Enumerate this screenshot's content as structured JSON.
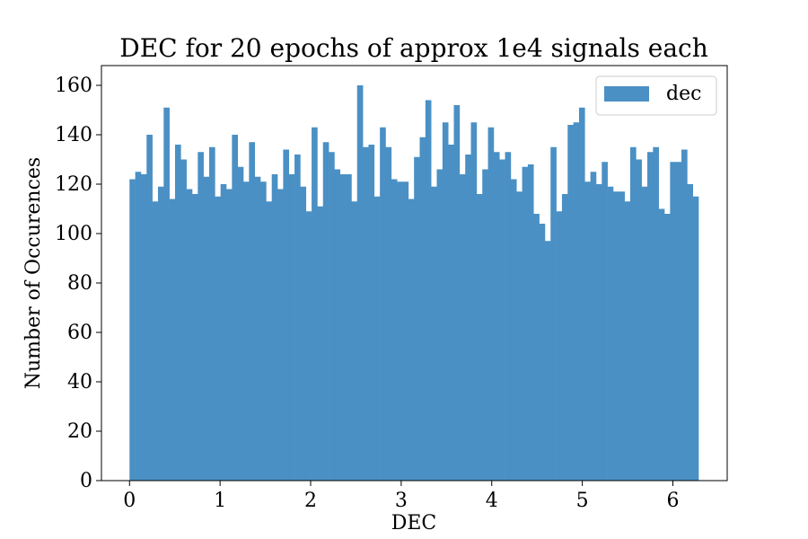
{
  "chart_data": {
    "type": "bar",
    "title": "DEC for 20 epochs of approx 1e4 signals each",
    "xlabel": "DEC",
    "ylabel": "Number of Occurences",
    "xlim": [
      -0.31,
      6.6
    ],
    "ylim": [
      0,
      168
    ],
    "xticks": [
      0,
      1,
      2,
      3,
      4,
      5,
      6
    ],
    "xtick_labels": [
      "0",
      "1",
      "2",
      "3",
      "4",
      "5",
      "6"
    ],
    "yticks": [
      0,
      20,
      40,
      60,
      80,
      100,
      120,
      140,
      160
    ],
    "ytick_labels": [
      "0",
      "20",
      "40",
      "60",
      "80",
      "100",
      "120",
      "140",
      "160"
    ],
    "bin_start": 0,
    "bin_end": 6.2832,
    "legend": {
      "position": "top-right",
      "entries": [
        "dec"
      ]
    },
    "series": [
      {
        "name": "dec",
        "color": "#4a90c4",
        "values": [
          122,
          125,
          124,
          140,
          113,
          119,
          151,
          114,
          136,
          130,
          118,
          116,
          133,
          123,
          135,
          115,
          120,
          118,
          140,
          127,
          121,
          137,
          123,
          121,
          113,
          124,
          118,
          134,
          124,
          132,
          119,
          109,
          143,
          111,
          137,
          133,
          126,
          124,
          124,
          113,
          160,
          135,
          136,
          115,
          143,
          135,
          122,
          121,
          121,
          114,
          131,
          139,
          154,
          119,
          126,
          145,
          136,
          152,
          124,
          132,
          145,
          116,
          126,
          143,
          133,
          130,
          133,
          122,
          117,
          127,
          128,
          108,
          104,
          97,
          135,
          109,
          116,
          144,
          145,
          151,
          121,
          125,
          120,
          129,
          119,
          117,
          117,
          113,
          135,
          130,
          119,
          133,
          135,
          110,
          108,
          129,
          129,
          134,
          120,
          115
        ]
      }
    ]
  }
}
